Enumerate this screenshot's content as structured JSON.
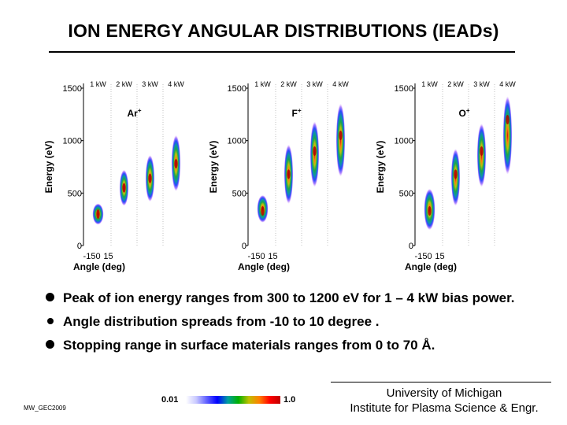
{
  "title": "ION ENERGY ANGULAR DISTRIBUTIONS (IEADs)",
  "chart_data": [
    {
      "type": "heatmap",
      "species": "Ar+",
      "ylabel": "Energy (eV)",
      "xlabel": "Angle (deg)",
      "ylim": [
        0,
        1500
      ],
      "yticks": [
        0,
        500,
        1000,
        1500
      ],
      "xticks": [
        "-15",
        "0",
        "15"
      ],
      "panels": [
        {
          "label": "1 kW",
          "energy_range": [
            200,
            400
          ],
          "peak_energy": 300
        },
        {
          "label": "2 kW",
          "energy_range": [
            380,
            720
          ],
          "peak_energy": 550
        },
        {
          "label": "3 kW",
          "energy_range": [
            420,
            860
          ],
          "peak_energy": 640
        },
        {
          "label": "4 kW",
          "energy_range": [
            520,
            1050
          ],
          "peak_energy": 780
        }
      ]
    },
    {
      "type": "heatmap",
      "species": "F+",
      "ylabel": "Energy (eV)",
      "xlabel": "Angle (deg)",
      "ylim": [
        0,
        1500
      ],
      "yticks": [
        0,
        500,
        1000,
        1500
      ],
      "xticks": [
        "-15",
        "0",
        "15"
      ],
      "panels": [
        {
          "label": "1 kW",
          "energy_range": [
            220,
            480
          ],
          "peak_energy": 330
        },
        {
          "label": "2 kW",
          "energy_range": [
            400,
            960
          ],
          "peak_energy": 680
        },
        {
          "label": "3 kW",
          "energy_range": [
            560,
            1180
          ],
          "peak_energy": 900
        },
        {
          "label": "4 kW",
          "energy_range": [
            660,
            1350
          ],
          "peak_energy": 1050
        }
      ]
    },
    {
      "type": "heatmap",
      "species": "O+",
      "ylabel": "Energy (eV)",
      "xlabel": "Angle (deg)",
      "ylim": [
        0,
        1500
      ],
      "yticks": [
        0,
        500,
        1000,
        1500
      ],
      "xticks": [
        "-15",
        "0",
        "15"
      ],
      "panels": [
        {
          "label": "1 kW",
          "energy_range": [
            150,
            540
          ],
          "peak_energy": 330
        },
        {
          "label": "2 kW",
          "energy_range": [
            380,
            920
          ],
          "peak_energy": 680
        },
        {
          "label": "3 kW",
          "energy_range": [
            560,
            1160
          ],
          "peak_energy": 900
        },
        {
          "label": "4 kW",
          "energy_range": [
            680,
            1420
          ],
          "peak_energy": 1200
        }
      ]
    }
  ],
  "bullets": [
    "Peak of ion energy ranges from 300 to 1200 eV for 1 – 4 kW bias power.",
    "Angle distribution spreads from -10 to 10 degree .",
    "Stopping range in surface materials ranges from 0 to 70 Å."
  ],
  "footer": {
    "code": "MW_GEC2009",
    "scale_min": "0.01",
    "scale_max": "1.0",
    "affiliation_line1": "University of Michigan",
    "affiliation_line2": "Institute for Plasma Science & Engr."
  }
}
